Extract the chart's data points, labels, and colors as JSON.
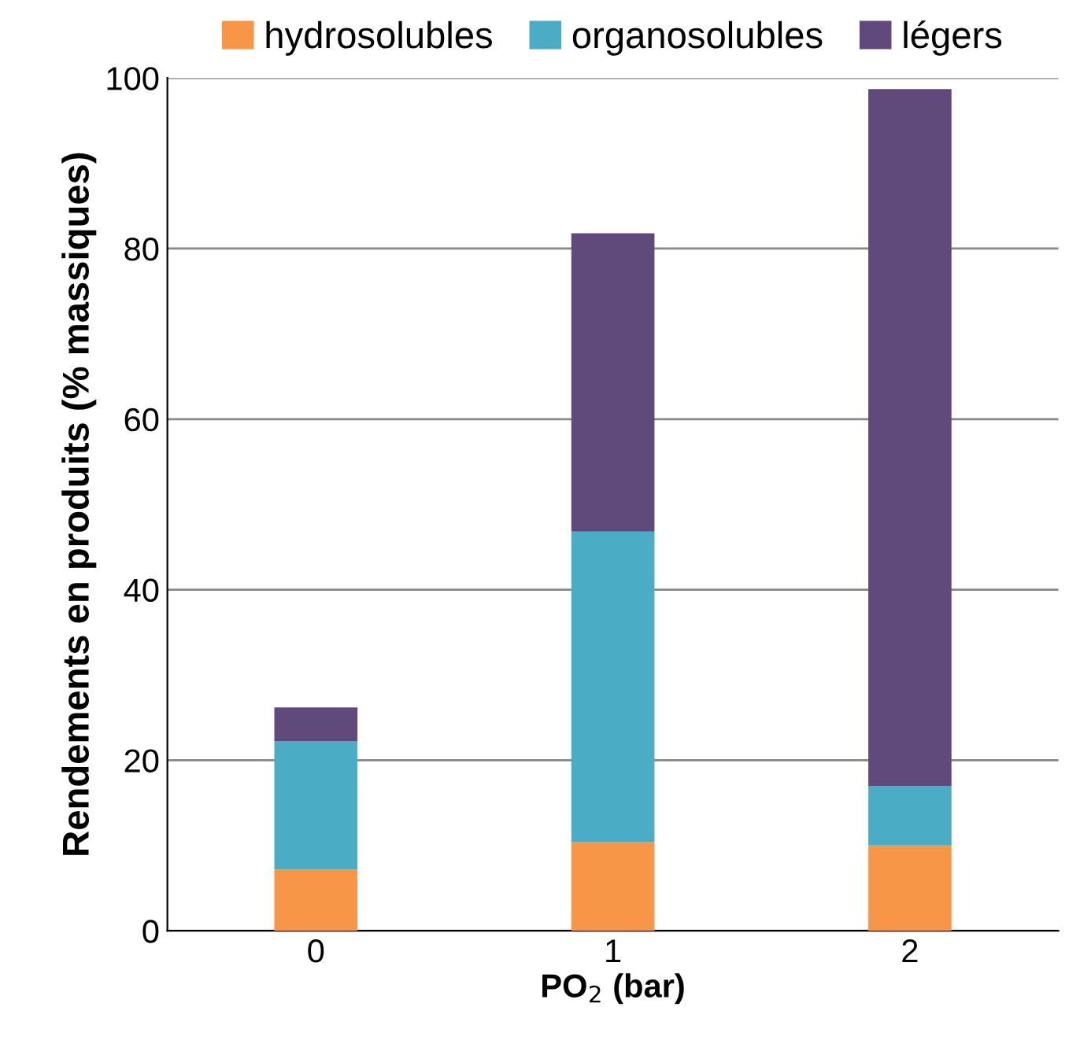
{
  "chart_data": {
    "type": "bar",
    "stacked": true,
    "categories": [
      "0",
      "1",
      "2"
    ],
    "xlabel": "PO$_{2}$ (bar)",
    "ylabel": "Rendements en produits (% massiques)",
    "series": [
      {
        "name": "hydrosolubles",
        "color": "#f79646",
        "values": [
          7.2,
          10.4,
          10
        ]
      },
      {
        "name": "organosolubles",
        "color": "#4bacc6",
        "values": [
          15,
          36.4,
          7
        ]
      },
      {
        "name": "légers",
        "color": "#604a7b",
        "values": [
          4,
          35,
          81.7
        ]
      }
    ],
    "ylim": [
      0,
      100
    ],
    "yticks": [
      0,
      20,
      40,
      60,
      80,
      100
    ],
    "grid": "y",
    "legend": "top"
  }
}
